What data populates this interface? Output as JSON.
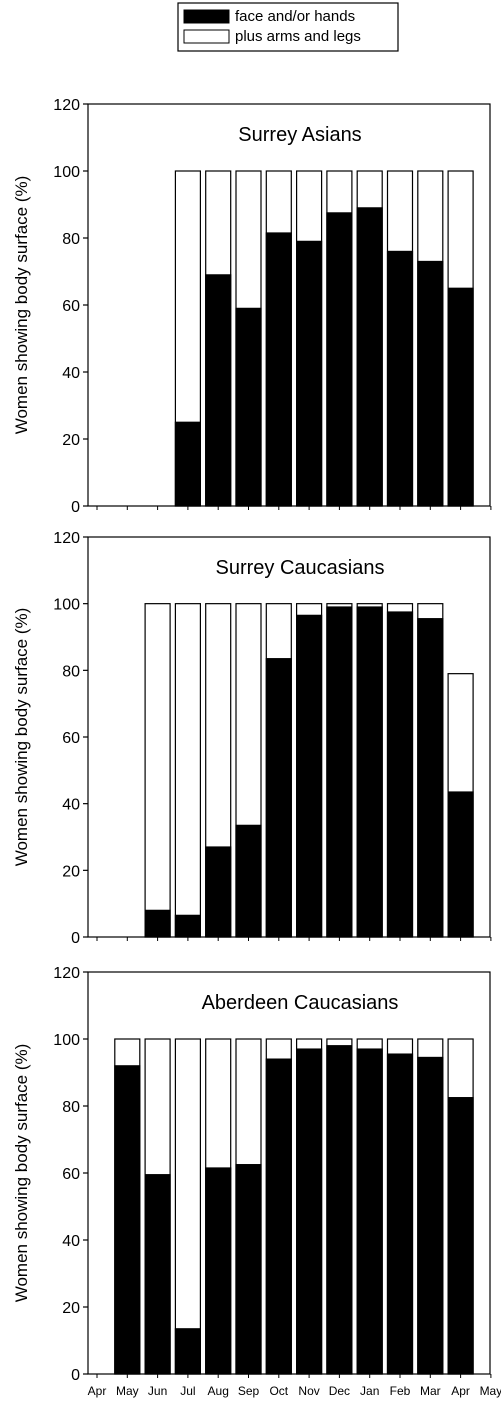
{
  "legend": {
    "items": [
      {
        "label": "face and/or hands",
        "color": "#000000"
      },
      {
        "label": "plus arms and legs",
        "color": "#ffffff"
      }
    ],
    "placement": "top-center"
  },
  "chart_data": [
    {
      "type": "bar",
      "stacked": true,
      "title": "Surrey Asians",
      "ylabel": "Women showing body surface (%)",
      "ylim": [
        0,
        120
      ],
      "yticks": [
        0,
        20,
        40,
        60,
        80,
        100,
        120
      ],
      "grid": false,
      "categories": [
        "Jul",
        "Aug",
        "Sep",
        "Oct",
        "Nov",
        "Dec",
        "Jan",
        "Feb",
        "Mar",
        "Apr"
      ],
      "series": [
        {
          "name": "face and/or hands",
          "values": [
            25,
            69,
            59,
            81.5,
            79,
            87.5,
            89,
            76,
            73,
            65
          ]
        },
        {
          "name": "plus arms and legs",
          "values": [
            75,
            31,
            41,
            18.5,
            21,
            12.5,
            11,
            24,
            27,
            35
          ]
        }
      ]
    },
    {
      "type": "bar",
      "stacked": true,
      "title": "Surrey Caucasians",
      "ylabel": "Women showing body surface (%)",
      "ylim": [
        0,
        120
      ],
      "yticks": [
        0,
        20,
        40,
        60,
        80,
        100,
        120
      ],
      "grid": false,
      "categories": [
        "Jun",
        "Jul",
        "Aug",
        "Sep",
        "Oct",
        "Nov",
        "Dec",
        "Jan",
        "Feb",
        "Mar",
        "Apr"
      ],
      "series": [
        {
          "name": "face and/or hands",
          "values": [
            8,
            6.5,
            27,
            33.5,
            83.5,
            96.5,
            99,
            99,
            97.5,
            95.5,
            43.5
          ]
        },
        {
          "name": "plus arms and legs",
          "values": [
            92,
            93.5,
            73,
            66.5,
            16.5,
            3.5,
            1,
            1,
            2.5,
            4.5,
            35.5
          ]
        }
      ]
    },
    {
      "type": "bar",
      "stacked": true,
      "title": "Aberdeen Caucasians",
      "ylabel": "Women showing body surface (%)",
      "ylim": [
        0,
        120
      ],
      "yticks": [
        0,
        20,
        40,
        60,
        80,
        100,
        120
      ],
      "grid": false,
      "categories": [
        "May",
        "Jun",
        "Jul",
        "Aug",
        "Sep",
        "Oct",
        "Nov",
        "Dec",
        "Jan",
        "Feb",
        "Mar",
        "Apr"
      ],
      "series": [
        {
          "name": "face and/or hands",
          "values": [
            92,
            59.5,
            13.5,
            61.5,
            62.5,
            94,
            97,
            98,
            97,
            95.5,
            94.5,
            82.5
          ]
        },
        {
          "name": "plus arms and legs",
          "values": [
            8,
            40.5,
            86.5,
            38.5,
            37.5,
            6,
            3,
            2,
            3,
            4.5,
            5.5,
            17.5
          ]
        }
      ],
      "x_tick_labels": [
        "Apr",
        "May",
        "Jun",
        "Jul",
        "Aug",
        "Sep",
        "Oct",
        "Nov",
        "Dec",
        "Jan",
        "Feb",
        "Mar",
        "Apr",
        "May"
      ]
    }
  ]
}
